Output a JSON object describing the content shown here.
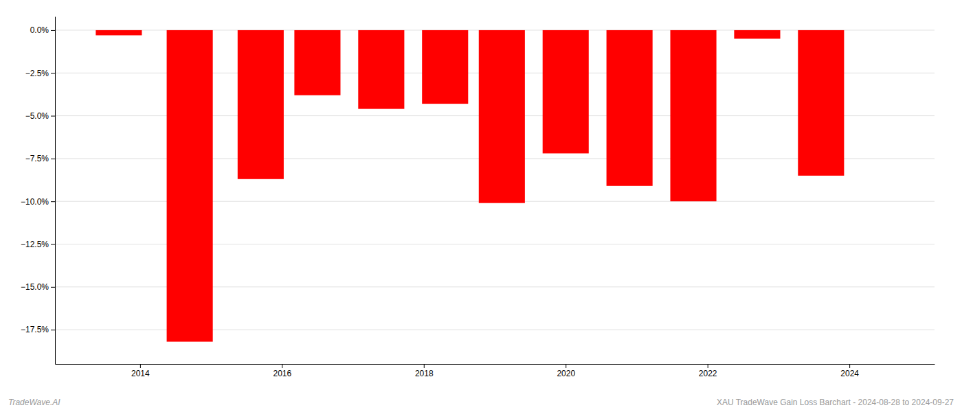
{
  "chart_data": {
    "type": "bar",
    "x": [
      2013.7,
      2014.7,
      2015.7,
      2016.5,
      2017.4,
      2018.3,
      2019.1,
      2020.0,
      2020.9,
      2021.8,
      2022.7,
      2023.6
    ],
    "values": [
      -0.3,
      -18.2,
      -8.7,
      -3.8,
      -4.6,
      -4.3,
      -10.1,
      -7.2,
      -9.1,
      -10.0,
      -0.5,
      -8.5
    ],
    "color": "#ff0000",
    "xlim": [
      2012.8,
      2025.2
    ],
    "xticks": [
      2014,
      2016,
      2018,
      2020,
      2022,
      2024
    ],
    "ylim": [
      -19.5,
      0.8
    ],
    "yticks": [
      {
        "value": 0.0,
        "label": "0.0%"
      },
      {
        "value": -2.5,
        "label": "−2.5%"
      },
      {
        "value": -5.0,
        "label": "−5.0%"
      },
      {
        "value": -7.5,
        "label": "−7.5%"
      },
      {
        "value": -10.0,
        "label": "−10.0%"
      },
      {
        "value": -12.5,
        "label": "−12.5%"
      },
      {
        "value": -15.0,
        "label": "−15.0%"
      },
      {
        "value": -17.5,
        "label": "−17.5%"
      }
    ],
    "grid": true,
    "annotations": [
      "TradeWave.AI",
      "XAU TradeWave Gain Loss Barchart - 2024-08-28 to 2024-09-27"
    ]
  }
}
